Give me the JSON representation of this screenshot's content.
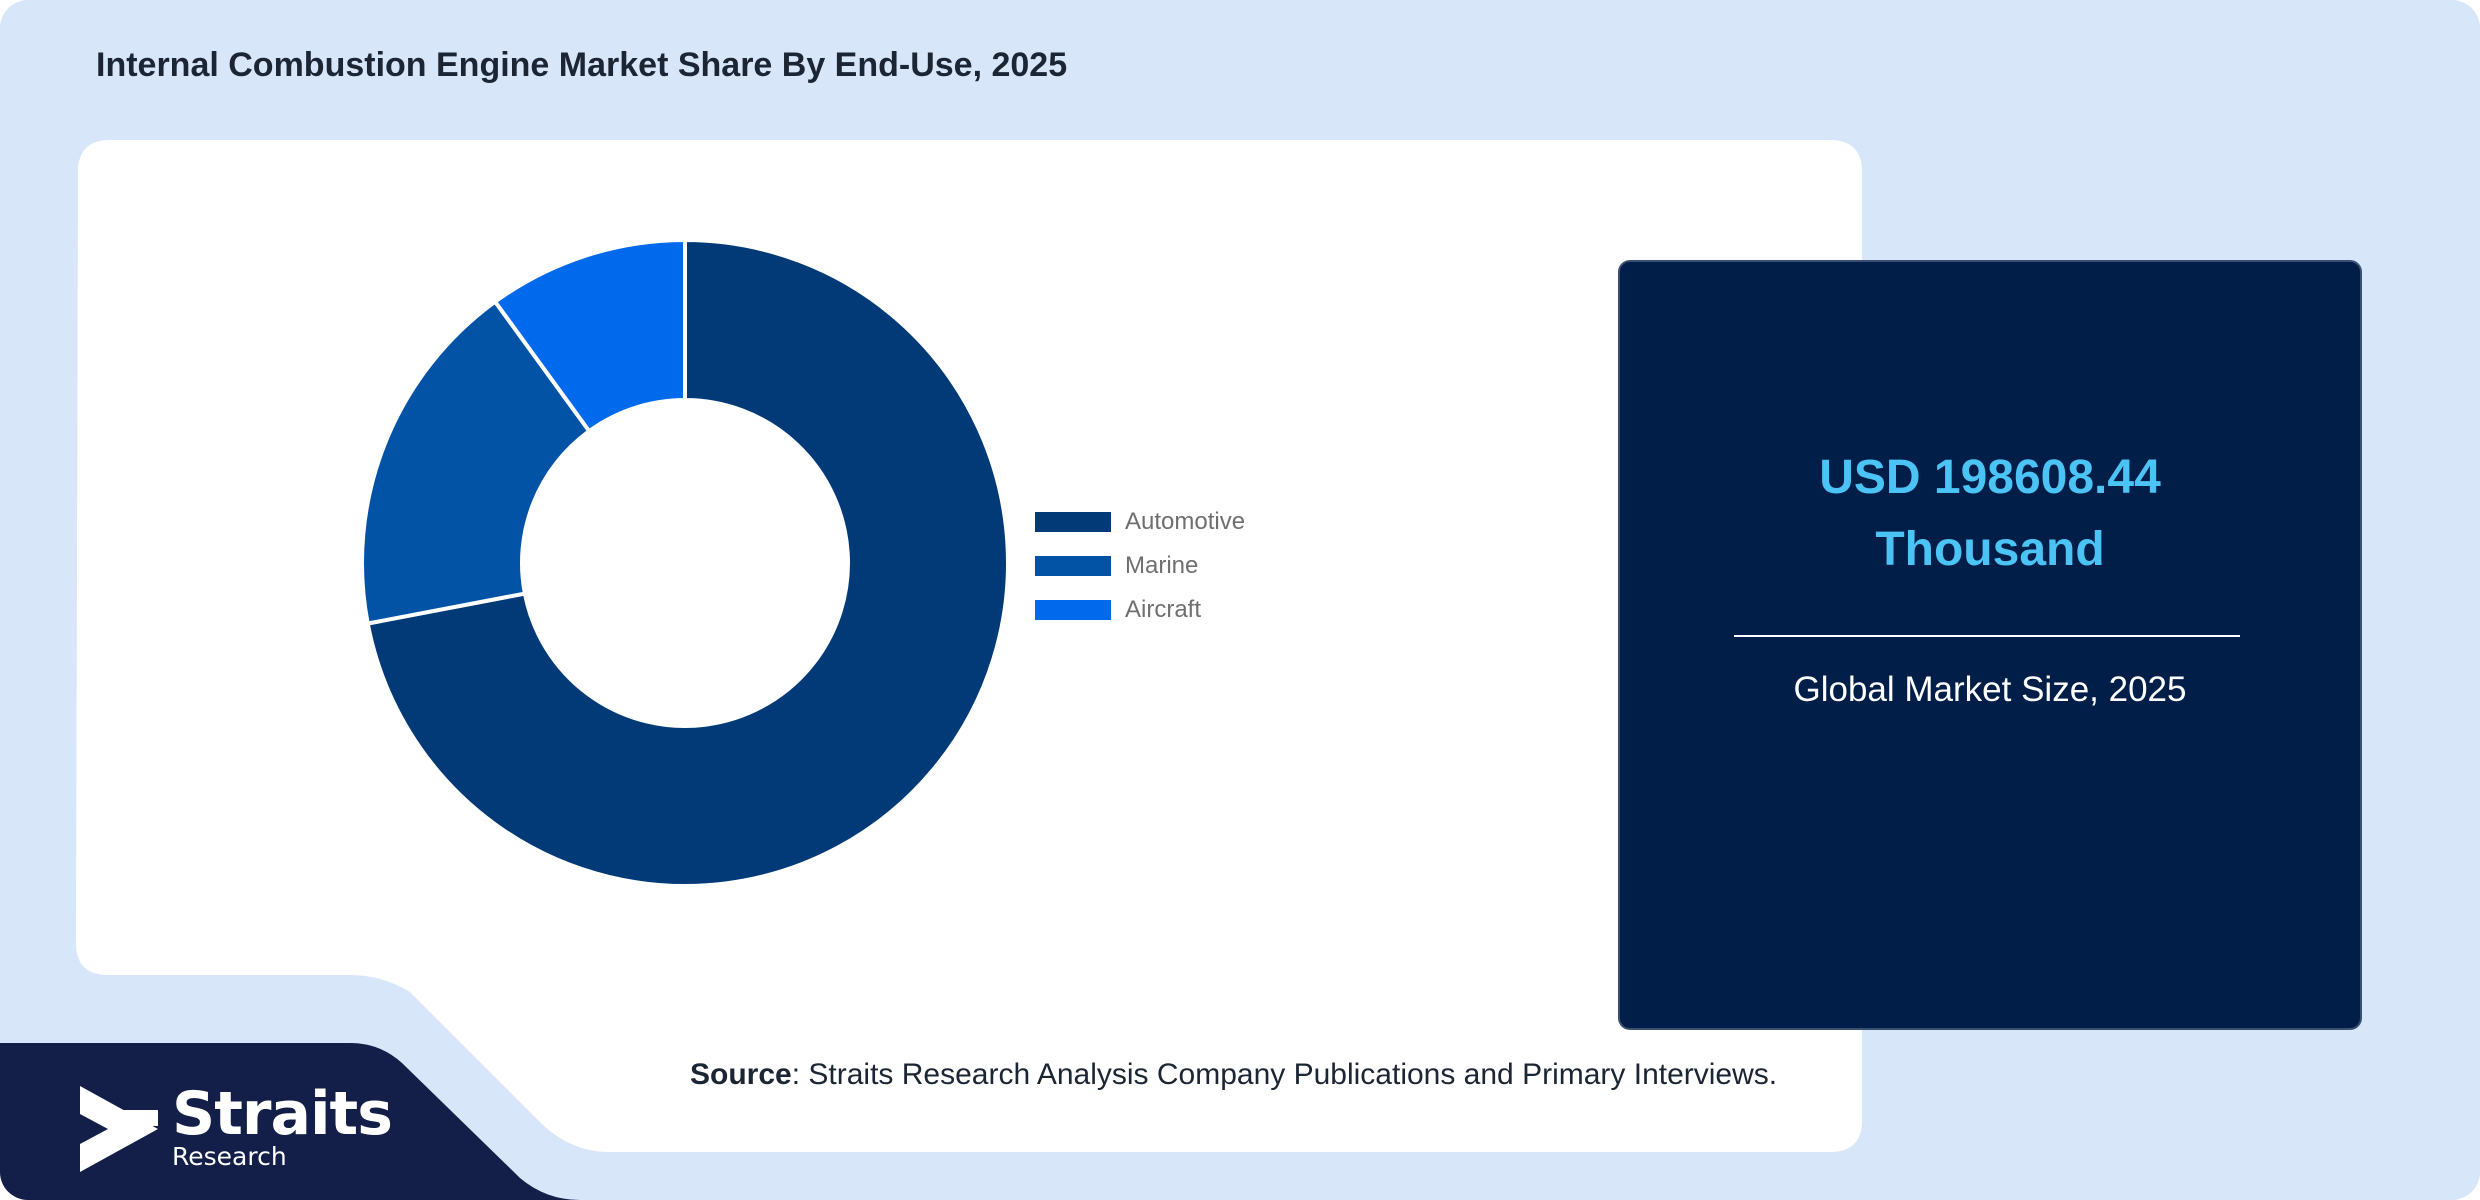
{
  "title": "Internal Combustion Engine Market Share By End-Use, 2025",
  "colors": {
    "automotive": "#023a78",
    "marine": "#0252a6",
    "aircraft": "#0069ec",
    "card_bg": "#001e48",
    "accent": "#4cc3f5"
  },
  "chart_data": {
    "type": "pie",
    "donut": true,
    "labels": [
      "Automotive",
      "Marine",
      "Aircraft"
    ],
    "values": [
      72,
      18,
      10
    ],
    "legend_position": "right"
  },
  "stat": {
    "value_line1": "USD 198608.44",
    "value_line2": "Thousand",
    "caption": "Global Market Size, 2025"
  },
  "source": {
    "label": "Source",
    "text": ": Straits Research Analysis Company Publications and Primary Interviews."
  },
  "logo": {
    "name": "Straits",
    "sub": "Research"
  }
}
